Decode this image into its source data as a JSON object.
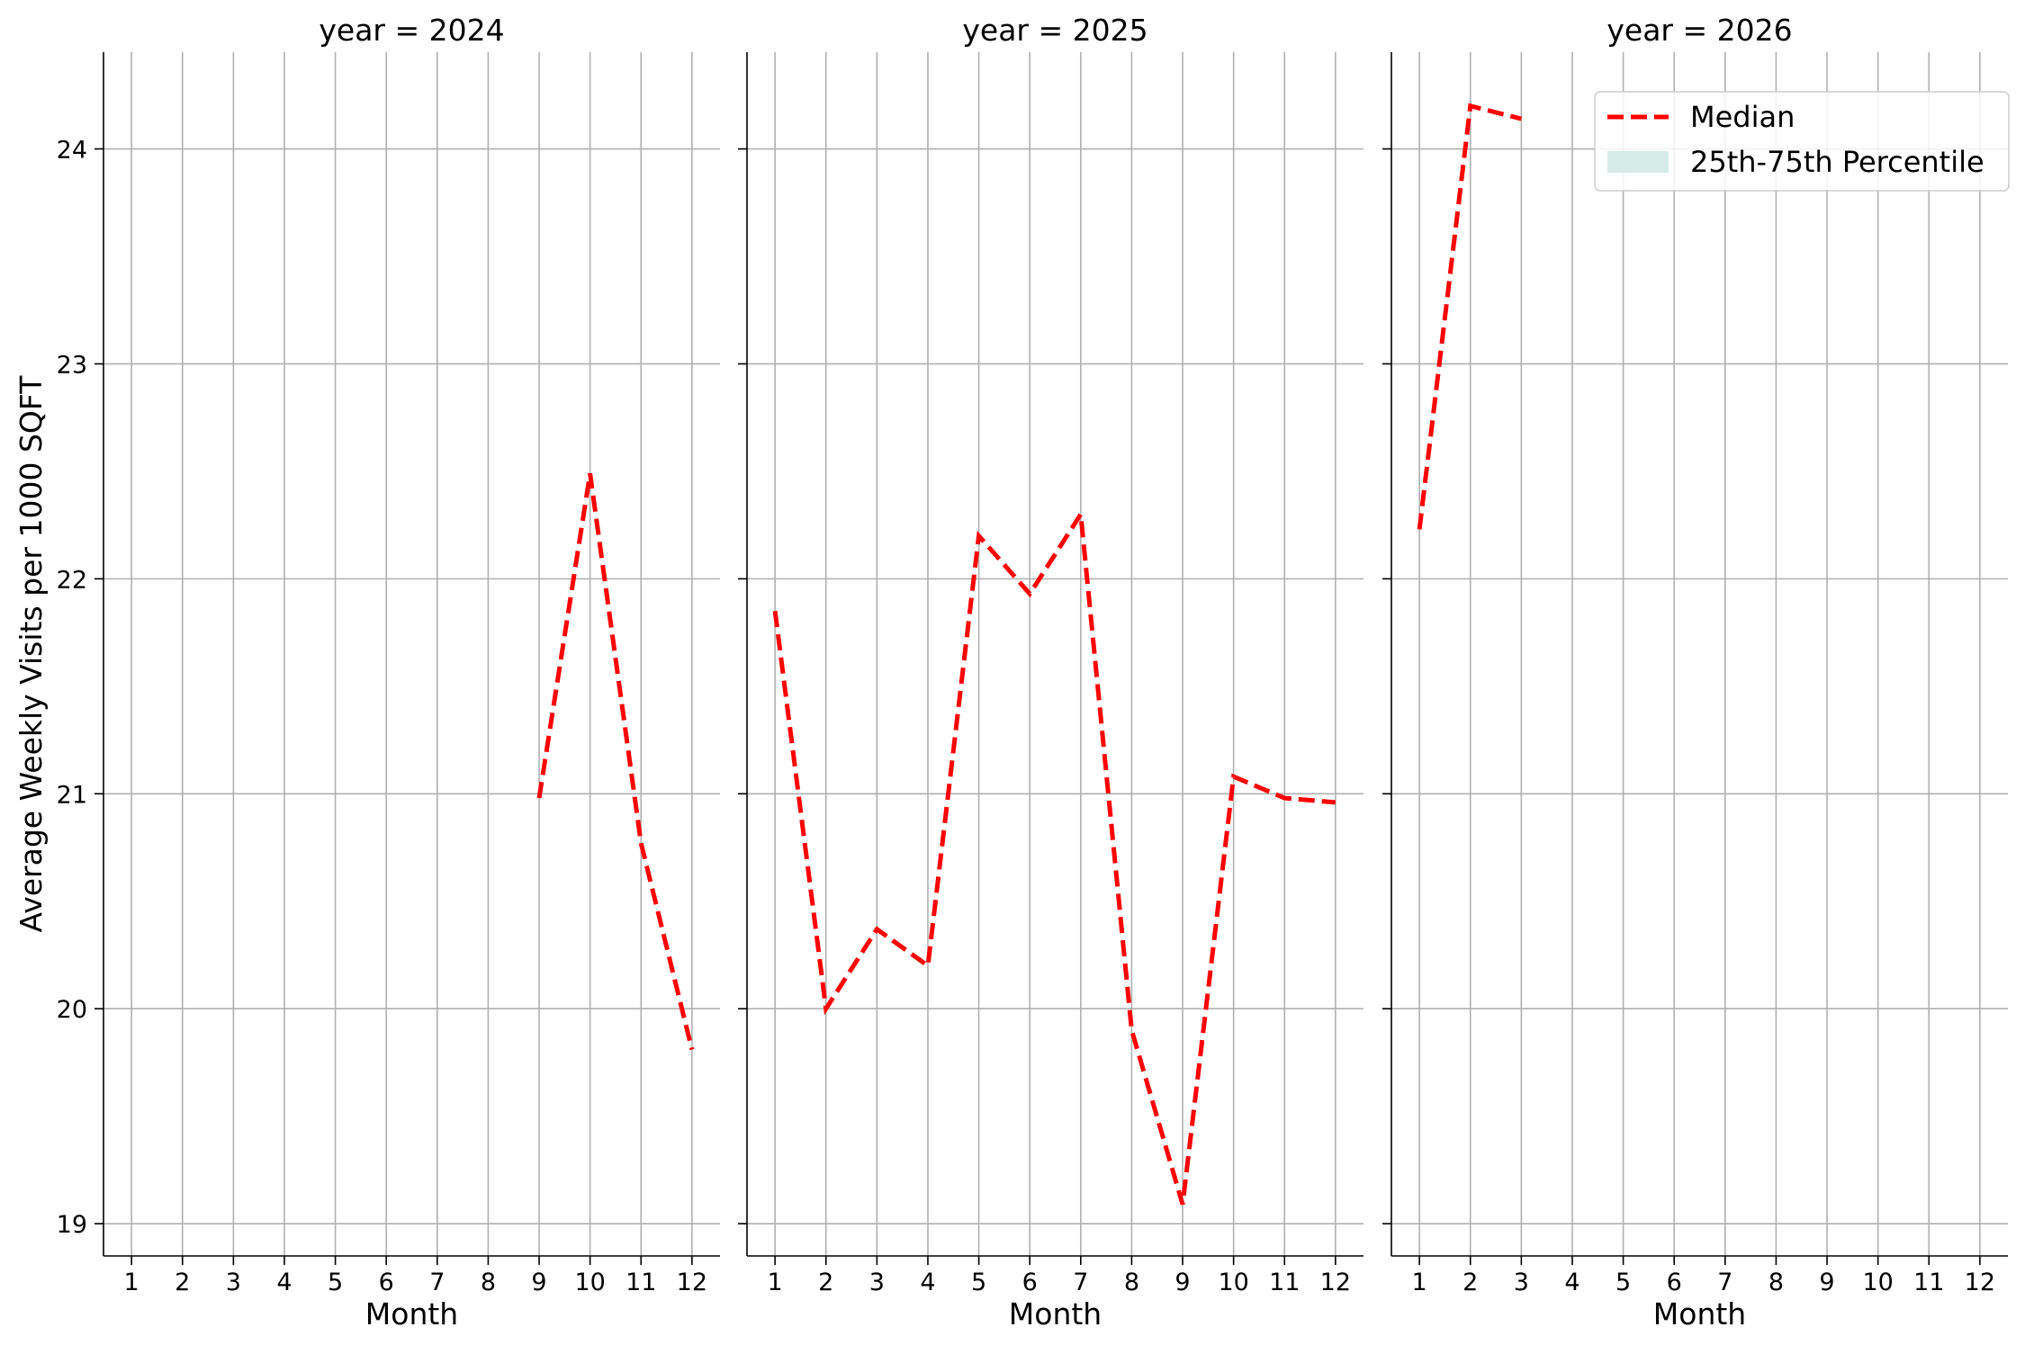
{
  "chart_data": {
    "type": "line",
    "ylabel": "Average Weekly Visits per 1000 SQFT",
    "y_ticks": [
      19,
      20,
      21,
      22,
      23,
      24
    ],
    "ylim": [
      18.85,
      24.45
    ],
    "x_ticks": [
      1,
      2,
      3,
      4,
      5,
      6,
      7,
      8,
      9,
      10,
      11,
      12
    ],
    "xlim": [
      0.45,
      12.55
    ],
    "grid": true,
    "legend": {
      "placement": "top-right of last panel",
      "entries": [
        {
          "label": "Median",
          "style": "dashed-line",
          "color": "#ff0000"
        },
        {
          "label": "25th-75th Percentile",
          "style": "filled-patch",
          "color": "#d6ece7"
        }
      ]
    },
    "colors": {
      "median": "#ff0000",
      "grid": "#b0b0b0"
    },
    "panels": [
      {
        "title": "year = 2024",
        "xlabel": "Month",
        "series": [
          {
            "name": "Median",
            "x": [
              9,
              10,
              11,
              12
            ],
            "y": [
              20.98,
              22.49,
              20.77,
              19.81
            ]
          }
        ]
      },
      {
        "title": "year = 2025",
        "xlabel": "Month",
        "series": [
          {
            "name": "Median",
            "x": [
              1,
              2,
              3,
              4,
              5,
              6,
              7,
              8,
              9,
              10,
              11,
              12
            ],
            "y": [
              21.85,
              20.0,
              20.37,
              20.2,
              22.2,
              21.93,
              22.3,
              19.9,
              19.09,
              21.08,
              20.98,
              20.96
            ]
          }
        ]
      },
      {
        "title": "year = 2026",
        "xlabel": "Month",
        "series": [
          {
            "name": "Median",
            "x": [
              1,
              2,
              3
            ],
            "y": [
              22.23,
              24.2,
              24.14
            ]
          }
        ]
      }
    ]
  }
}
